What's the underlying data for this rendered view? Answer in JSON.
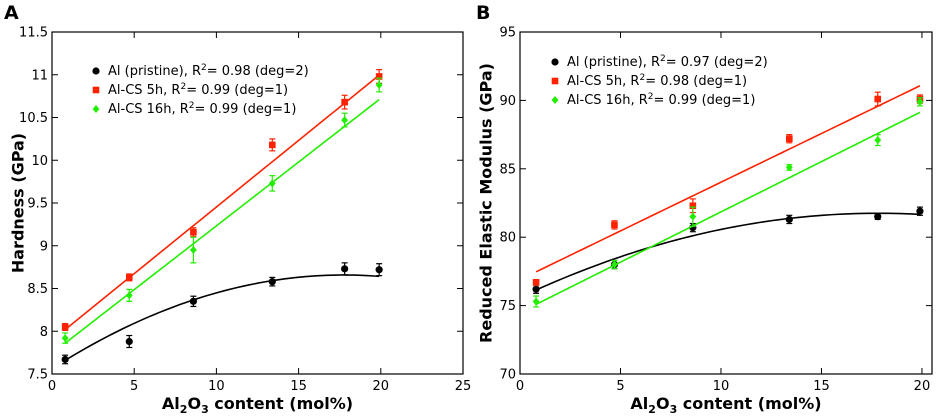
{
  "chart_data": [
    {
      "type": "scatter",
      "panel": "A",
      "xlabel": {
        "pre": "Al",
        "sub1": "2",
        "mid": "O",
        "sub2": "3",
        "post": " content (mol%)"
      },
      "ylabel": "Hardness (GPa)",
      "xlim": [
        0,
        25
      ],
      "ylim": [
        7.5,
        11.5
      ],
      "xticks": [
        0,
        5,
        10,
        15,
        20,
        25
      ],
      "yticks": [
        7.5,
        8,
        8.5,
        9,
        9.5,
        10,
        10.5,
        11,
        11.5
      ],
      "ytick_labels": [
        "7.5",
        "8",
        "8.5",
        "9",
        "9.5",
        "10",
        "10.5",
        "11",
        "11.5"
      ],
      "legend_position": "top-left",
      "series": [
        {
          "name": "Al (pristine)",
          "r2_text": "= 0.98 (deg=2)",
          "color": "#000000",
          "marker": "circle",
          "x": [
            0.8,
            4.7,
            8.6,
            13.4,
            17.8,
            19.9
          ],
          "y": [
            7.67,
            7.88,
            8.35,
            8.58,
            8.73,
            8.72
          ],
          "err": [
            0.05,
            0.07,
            0.06,
            0.05,
            0.07,
            0.07
          ],
          "fit": {
            "deg": 2,
            "coef": [
              -0.003474,
              0.12337,
              7.5625
            ]
          }
        },
        {
          "name": "Al-CS 5h",
          "r2_text": "= 0.99 (deg=1)",
          "color": "#ff2200",
          "marker": "square",
          "x": [
            0.8,
            4.7,
            8.6,
            13.4,
            17.8,
            19.9
          ],
          "y": [
            8.05,
            8.63,
            9.16,
            10.18,
            10.68,
            10.98
          ],
          "err": [
            0.04,
            0.04,
            0.05,
            0.07,
            0.08,
            0.08
          ],
          "fit": {
            "deg": 1,
            "coef": [
              0.1558,
              7.895
            ]
          }
        },
        {
          "name": "Al-CS 16h",
          "r2_text": "= 0.99 (deg=1)",
          "color": "#22ee00",
          "marker": "diamond",
          "x": [
            0.8,
            4.7,
            8.6,
            13.4,
            17.8,
            19.9
          ],
          "y": [
            7.92,
            8.42,
            8.95,
            9.73,
            10.47,
            10.88
          ],
          "err": [
            0.06,
            0.07,
            0.15,
            0.09,
            0.08,
            0.08
          ],
          "fit": {
            "deg": 1,
            "coef": [
              0.1492,
              7.7406
            ]
          }
        }
      ]
    },
    {
      "type": "scatter",
      "panel": "B",
      "xlabel": {
        "pre": "Al",
        "sub1": "2",
        "mid": "O",
        "sub2": "3",
        "post": " content (mol%)"
      },
      "ylabel": "Reduced Elastic Modulus (GPa)",
      "xlim": [
        0,
        20.5
      ],
      "ylim": [
        70,
        95
      ],
      "xticks": [
        0,
        5,
        10,
        15,
        20
      ],
      "yticks": [
        70,
        75,
        80,
        85,
        90,
        95
      ],
      "ytick_labels": [
        "70",
        "75",
        "80",
        "85",
        "90",
        "95"
      ],
      "legend_position": "top-left",
      "series": [
        {
          "name": "Al (pristine)",
          "r2_text": "= 0.97 (deg=2)",
          "color": "#000000",
          "marker": "circle",
          "x": [
            0.8,
            4.7,
            8.6,
            13.4,
            17.8,
            19.9
          ],
          "y": [
            76.2,
            78.0,
            80.7,
            81.3,
            81.5,
            81.9
          ],
          "err": [
            0.3,
            0.3,
            0.3,
            0.3,
            0.2,
            0.3
          ],
          "fit": {
            "deg": 2,
            "coef": [
              -0.0194,
              0.6908,
              75.6
            ]
          }
        },
        {
          "name": "Al-CS 5h",
          "r2_text": "= 0.98 (deg=1)",
          "color": "#ff2200",
          "marker": "square",
          "x": [
            0.8,
            4.7,
            8.6,
            13.4,
            17.8,
            19.9
          ],
          "y": [
            76.7,
            80.9,
            82.3,
            87.2,
            90.1,
            90.1
          ],
          "err": [
            0.2,
            0.3,
            0.5,
            0.3,
            0.5,
            0.3
          ],
          "fit": {
            "deg": 1,
            "coef": [
              0.712,
              76.9
            ]
          }
        },
        {
          "name": "Al-CS 16h",
          "r2_text": "= 0.99 (deg=1)",
          "color": "#22ee00",
          "marker": "diamond",
          "x": [
            0.8,
            4.7,
            8.6,
            13.4,
            17.8,
            19.9
          ],
          "y": [
            75.3,
            78.0,
            81.5,
            85.1,
            87.1,
            89.9
          ],
          "err": [
            0.4,
            0.3,
            0.7,
            0.2,
            0.4,
            0.3
          ],
          "fit": {
            "deg": 1,
            "coef": [
              0.735,
              74.5
            ]
          }
        }
      ]
    }
  ]
}
